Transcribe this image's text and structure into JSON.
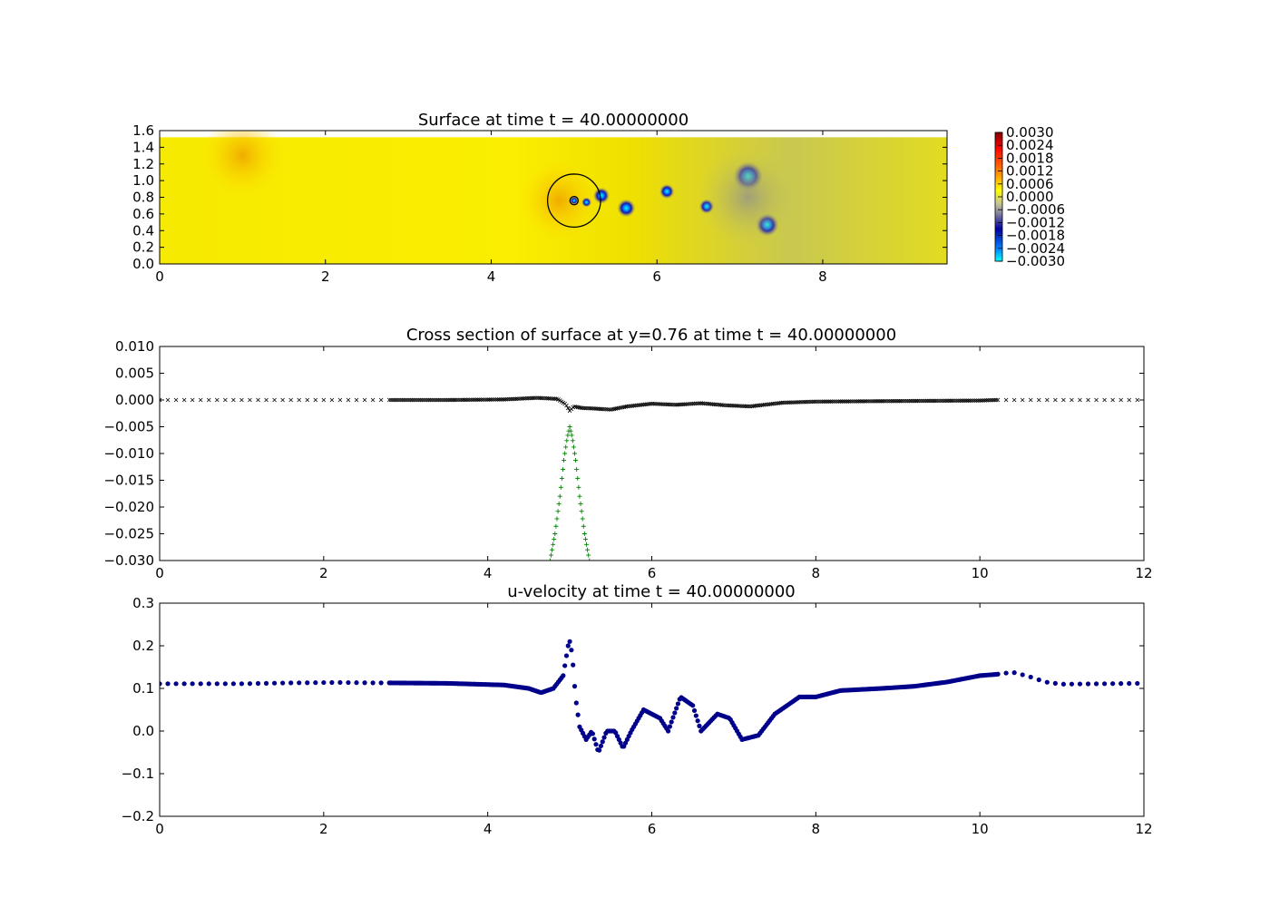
{
  "chart_data": [
    {
      "type": "heatmap",
      "title": "Surface at time t =    40.00000000",
      "xlim": [
        0,
        9.5
      ],
      "ylim": [
        0,
        1.6
      ],
      "xticks": [
        "0",
        "2",
        "4",
        "6",
        "8"
      ],
      "yticks": [
        "0.0",
        "0.2",
        "0.4",
        "0.6",
        "0.8",
        "1.0",
        "1.2",
        "1.4",
        "1.6"
      ],
      "domain": {
        "xmax": 9.5,
        "ymax": 1.52
      },
      "background_value": 0.0002,
      "features": [
        {
          "x": 4.82,
          "y": 0.76,
          "value": 0.0008,
          "r": 0.5
        },
        {
          "x": 1.0,
          "y": 1.3,
          "value": 0.0006,
          "r": 0.5
        },
        {
          "x": 5.0,
          "y": 0.76,
          "value": -0.003,
          "r": 0.05
        },
        {
          "x": 5.15,
          "y": 0.74,
          "value": -0.0016,
          "r": 0.06
        },
        {
          "x": 5.33,
          "y": 0.82,
          "value": -0.0026,
          "r": 0.1
        },
        {
          "x": 5.63,
          "y": 0.67,
          "value": -0.0028,
          "r": 0.11
        },
        {
          "x": 6.12,
          "y": 0.87,
          "value": -0.0018,
          "r": 0.09
        },
        {
          "x": 6.6,
          "y": 0.69,
          "value": -0.0018,
          "r": 0.09
        },
        {
          "x": 7.1,
          "y": 1.05,
          "value": -0.003,
          "r": 0.18
        },
        {
          "x": 7.33,
          "y": 0.47,
          "value": -0.003,
          "r": 0.14
        },
        {
          "x": 7.1,
          "y": 0.8,
          "value": -0.0009,
          "r": 0.6
        }
      ],
      "circles": [
        {
          "cx": 5.0,
          "cy": 0.76,
          "r": 0.32
        },
        {
          "cx": 5.0,
          "cy": 0.76,
          "r": 0.05
        }
      ],
      "colorbar": {
        "range": [
          -0.003,
          0.003
        ],
        "ticks": [
          "0.0030",
          "0.0024",
          "0.0018",
          "0.0012",
          "0.0006",
          "0.0000",
          "−0.0006",
          "−0.0012",
          "−0.0018",
          "−0.0024",
          "−0.0030"
        ]
      }
    },
    {
      "type": "scatter",
      "title": "Cross section of surface at y=0.76 at time t =    40.00000000",
      "xlim": [
        0,
        12
      ],
      "ylim": [
        -0.03,
        0.01
      ],
      "xticks": [
        "0",
        "2",
        "4",
        "6",
        "8",
        "10",
        "12"
      ],
      "yticks": [
        "0.010",
        "0.005",
        "0.000",
        "−0.005",
        "−0.010",
        "−0.015",
        "−0.020",
        "−0.025",
        "−0.030"
      ],
      "series": [
        {
          "marker": "x",
          "color": "#000000",
          "points": [
            [
              0,
              0.0
            ],
            [
              2.5,
              0.0
            ],
            [
              2.8,
              0.0
            ],
            [
              3.5,
              0.0
            ],
            [
              4.2,
              0.0001
            ],
            [
              4.6,
              0.0004
            ],
            [
              4.85,
              0.0002
            ],
            [
              4.95,
              -0.0008
            ],
            [
              5.0,
              -0.002
            ],
            [
              5.05,
              -0.0012
            ],
            [
              5.15,
              -0.0015
            ],
            [
              5.3,
              -0.0016
            ],
            [
              5.5,
              -0.0018
            ],
            [
              5.7,
              -0.0012
            ],
            [
              6.0,
              -0.0007
            ],
            [
              6.3,
              -0.0009
            ],
            [
              6.6,
              -0.0006
            ],
            [
              6.9,
              -0.001
            ],
            [
              7.2,
              -0.0012
            ],
            [
              7.6,
              -0.0005
            ],
            [
              8.0,
              -0.0003
            ],
            [
              9.0,
              -0.0002
            ],
            [
              10.0,
              -0.0001
            ],
            [
              10.2,
              0.0
            ],
            [
              11.0,
              0.0
            ],
            [
              12.0,
              0.0
            ]
          ]
        },
        {
          "marker": "+",
          "color": "#008000",
          "points": [
            [
              4.76,
              -0.03
            ],
            [
              4.82,
              -0.025
            ],
            [
              4.88,
              -0.018
            ],
            [
              4.93,
              -0.011
            ],
            [
              4.97,
              -0.007
            ],
            [
              5.0,
              -0.005
            ],
            [
              5.03,
              -0.007
            ],
            [
              5.07,
              -0.011
            ],
            [
              5.12,
              -0.018
            ],
            [
              5.18,
              -0.025
            ],
            [
              5.24,
              -0.03
            ]
          ]
        }
      ]
    },
    {
      "type": "scatter",
      "title": "u-velocity at time t =    40.00000000",
      "xlim": [
        0,
        12
      ],
      "ylim": [
        -0.2,
        0.3
      ],
      "xticks": [
        "0",
        "2",
        "4",
        "6",
        "8",
        "10",
        "12"
      ],
      "yticks": [
        "0.3",
        "0.2",
        "0.1",
        "0.0",
        "−0.1",
        "−0.2"
      ],
      "series": [
        {
          "marker": "o",
          "color": "#00008b",
          "points": [
            [
              0,
              0.111
            ],
            [
              1.0,
              0.111
            ],
            [
              1.6,
              0.113
            ],
            [
              2.2,
              0.114
            ],
            [
              2.6,
              0.113
            ],
            [
              2.8,
              0.113
            ],
            [
              3.5,
              0.112
            ],
            [
              4.2,
              0.108
            ],
            [
              4.5,
              0.1
            ],
            [
              4.65,
              0.09
            ],
            [
              4.8,
              0.1
            ],
            [
              4.92,
              0.13
            ],
            [
              4.98,
              0.2
            ],
            [
              5.0,
              0.21
            ],
            [
              5.03,
              0.18
            ],
            [
              5.07,
              0.08
            ],
            [
              5.12,
              0.01
            ],
            [
              5.2,
              -0.02
            ],
            [
              5.27,
              0.0
            ],
            [
              5.35,
              -0.05
            ],
            [
              5.45,
              0.0
            ],
            [
              5.55,
              0.0
            ],
            [
              5.65,
              -0.04
            ],
            [
              5.75,
              0.0
            ],
            [
              5.9,
              0.05
            ],
            [
              6.1,
              0.03
            ],
            [
              6.2,
              0.0
            ],
            [
              6.35,
              0.08
            ],
            [
              6.5,
              0.06
            ],
            [
              6.6,
              0.0
            ],
            [
              6.8,
              0.04
            ],
            [
              6.95,
              0.03
            ],
            [
              7.1,
              -0.02
            ],
            [
              7.3,
              -0.01
            ],
            [
              7.5,
              0.04
            ],
            [
              7.8,
              0.08
            ],
            [
              8.0,
              0.08
            ],
            [
              8.3,
              0.095
            ],
            [
              8.8,
              0.1
            ],
            [
              9.2,
              0.105
            ],
            [
              9.6,
              0.115
            ],
            [
              10.0,
              0.13
            ],
            [
              10.2,
              0.133
            ],
            [
              10.4,
              0.138
            ],
            [
              10.6,
              0.128
            ],
            [
              10.8,
              0.115
            ],
            [
              11.0,
              0.11
            ],
            [
              11.5,
              0.111
            ],
            [
              12.0,
              0.112
            ]
          ]
        }
      ]
    }
  ]
}
